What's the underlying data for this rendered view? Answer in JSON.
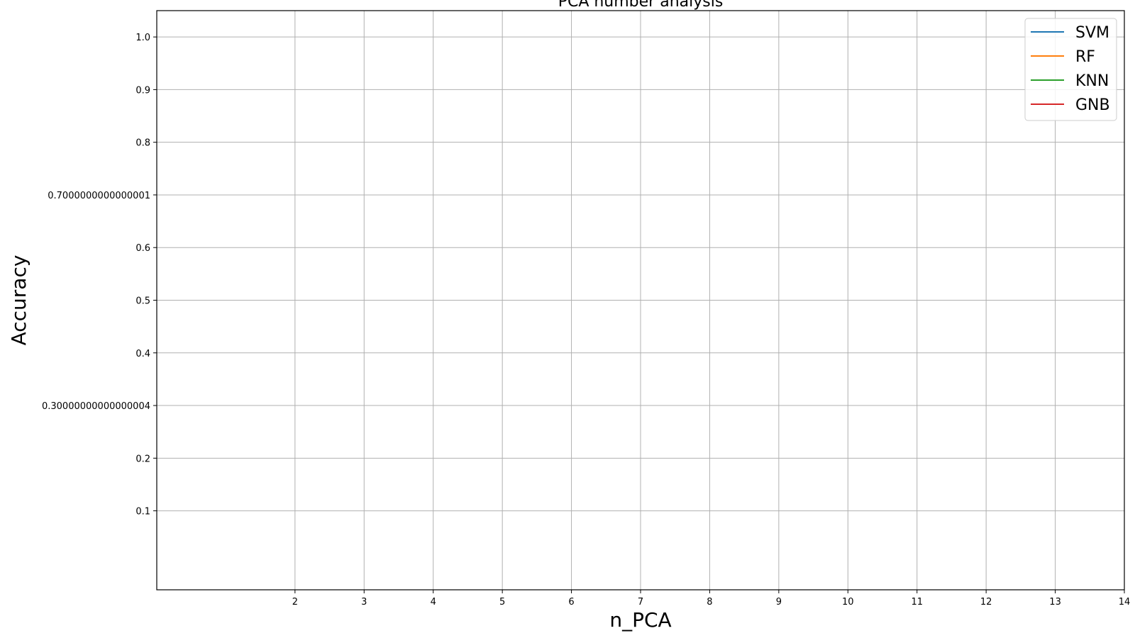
{
  "chart_data": {
    "type": "line",
    "title": "PCA number analysis",
    "xlabel": "n_PCA",
    "ylabel": "Accuracy",
    "xlim": [
      0,
      14
    ],
    "ylim": [
      -0.05,
      1.05
    ],
    "x_ticks": [
      2,
      3,
      4,
      5,
      6,
      7,
      8,
      9,
      10,
      11,
      12,
      13,
      14
    ],
    "x_tick_labels": [
      "2",
      "3",
      "4",
      "5",
      "6",
      "7",
      "8",
      "9",
      "10",
      "11",
      "12",
      "13",
      "14"
    ],
    "y_ticks": [
      0.1,
      0.2,
      0.30000000000000004,
      0.4,
      0.5,
      0.6,
      0.7000000000000001,
      0.8,
      0.9,
      1.0
    ],
    "y_tick_labels": [
      "0.1",
      "0.2",
      "0.30000000000000004",
      "0.4",
      "0.5",
      "0.6",
      "0.7000000000000001",
      "0.8",
      "0.9",
      "1.0"
    ],
    "grid": true,
    "legend_position": "top-right",
    "series": [
      {
        "name": "SVM",
        "color": "#1f77b4",
        "x": [],
        "values": []
      },
      {
        "name": "RF",
        "color": "#ff7f0e",
        "x": [],
        "values": []
      },
      {
        "name": "KNN",
        "color": "#2ca02c",
        "x": [],
        "values": []
      },
      {
        "name": "GNB",
        "color": "#d62728",
        "x": [],
        "values": []
      }
    ]
  }
}
